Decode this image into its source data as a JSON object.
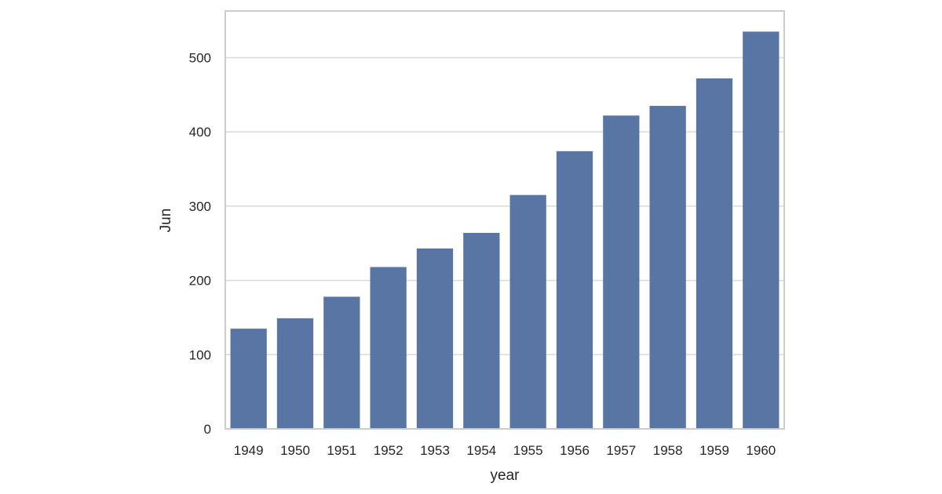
{
  "colors": {
    "bar": "#5875a4",
    "grid": "#d9d9d9",
    "frame": "#cccccc",
    "text": "#262626",
    "background": "#ffffff"
  },
  "chart_data": {
    "type": "bar",
    "categories": [
      "1949",
      "1950",
      "1951",
      "1952",
      "1953",
      "1954",
      "1955",
      "1956",
      "1957",
      "1958",
      "1959",
      "1960"
    ],
    "values": [
      135,
      149,
      178,
      218,
      243,
      264,
      315,
      374,
      422,
      435,
      472,
      535
    ],
    "xlabel": "year",
    "ylabel": "Jun",
    "ylim": [
      0,
      562.8
    ],
    "yticks": [
      0,
      100,
      200,
      300,
      400,
      500
    ],
    "grid": "horizontal",
    "legend": "none"
  }
}
